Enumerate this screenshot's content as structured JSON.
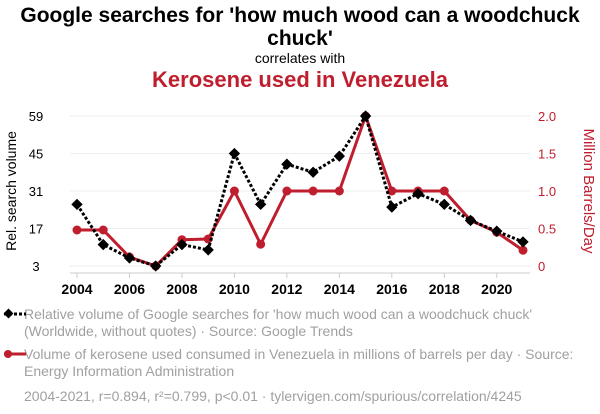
{
  "chart_data": {
    "type": "line",
    "title": "Google searches for 'how much wood can a woodchuck chuck'",
    "subtitle": "correlates with",
    "title2": "Kerosene used in Venezuela",
    "ylabel": "Rel. search volume",
    "ylabel_right": "Million Barrels/Day",
    "x": [
      2004,
      2005,
      2006,
      2007,
      2008,
      2009,
      2010,
      2011,
      2012,
      2013,
      2014,
      2015,
      2016,
      2017,
      2018,
      2019,
      2020,
      2021
    ],
    "x_ticks": [
      "2004",
      "2006",
      "2008",
      "2010",
      "2012",
      "2014",
      "2016",
      "2018",
      "2020"
    ],
    "y_ticks": [
      "3",
      "17",
      "31",
      "45",
      "59"
    ],
    "y_ticks_right": [
      "0",
      "0.5",
      "1.0",
      "1.5",
      "2.0"
    ],
    "ylim": [
      3,
      59
    ],
    "ylim_right": [
      0,
      2.0
    ],
    "series": [
      {
        "name": "Relative volume of Google searches for 'how much wood can a woodchuck chuck' (Worldwide, without quotes) · Source: Google Trends",
        "color": "#000000",
        "axis": "left",
        "values": [
          26,
          11,
          6,
          3,
          11,
          9,
          45,
          26,
          41,
          38,
          44,
          59,
          25,
          30,
          26,
          20,
          16,
          12
        ]
      },
      {
        "name": "Volume of kerosene used consumed in Venezuela in millions of barrels per day · Source: Energy Information Administration",
        "color": "#bf1e2e",
        "axis": "right",
        "values": [
          0.48,
          0.48,
          0.12,
          0,
          0.35,
          0.36,
          1.0,
          0.29,
          1.0,
          1.0,
          1.0,
          2.0,
          1.0,
          1.0,
          1.0,
          0.61,
          0.45,
          0.21
        ]
      }
    ],
    "footer": "2004-2021, r=0.894, r²=0.799, p<0.01 · tylervigen.com/spurious/correlation/4245"
  }
}
